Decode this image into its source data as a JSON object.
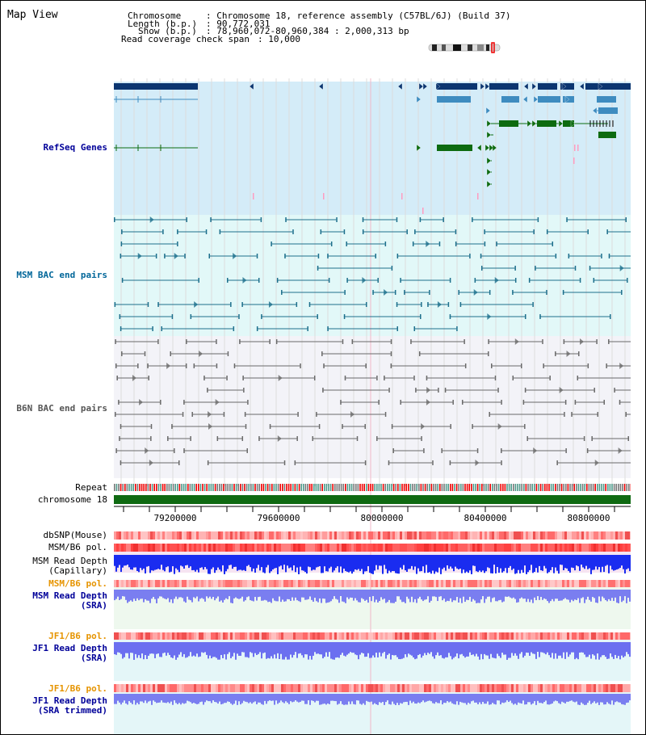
{
  "title": "Map View",
  "info": {
    "chromosome_key": "Chromosome",
    "chromosome_val": ": Chromosome 18, reference assembly (C57BL/6J) (Build 37)",
    "length_key": "Length (b.p.)",
    "length_val": ": 90,772,031",
    "show_key": "Show (b.p.)",
    "show_val": ": 78,960,072-80,960,384 : 2,000,313 bp",
    "span_key": "Read coverage check span",
    "span_val": ": 10,000"
  },
  "tracks": {
    "refseq": "RefSeq Genes",
    "msm_bac": "MSM BAC end pairs",
    "b6n_bac": "B6N BAC end pairs",
    "repeat": "Repeat",
    "chromosome": "chromosome 18",
    "dbsnp": "dbSNP(Mouse)",
    "msm_b6_pol": "MSM/B6 pol.",
    "msm_depth_cap_1": "MSM Read Depth",
    "msm_depth_cap_2": "(Capillary)",
    "msm_b6_pol2": "MSM/B6 pol.",
    "msm_depth_sra_1": "MSM Read Depth",
    "msm_depth_sra_2": "(SRA)",
    "jf1_b6_pol": "JF1/B6 pol.",
    "jf1_depth_sra_1": "JF1 Read Depth",
    "jf1_depth_sra_2": "(SRA)",
    "jf1_b6_pol2": "JF1/B6 pol.",
    "jf1_depth_trim_1": "JF1 Read Depth",
    "jf1_depth_trim_2": "(SRA trimmed)"
  },
  "axis": {
    "ticks": [
      "79200000",
      "79600000",
      "80000000",
      "80400000",
      "80800000"
    ]
  },
  "colors": {
    "refseq_label": "#000099",
    "msm_label": "#006699",
    "b6n_label": "#555555",
    "pol_orange": "#e69400",
    "depth_label": "#000099"
  }
}
